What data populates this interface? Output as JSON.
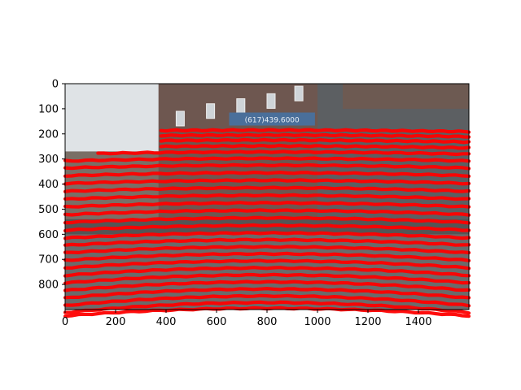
{
  "chart_data": {
    "type": "scatter",
    "title": "",
    "xlabel": "",
    "ylabel": "",
    "xlim": [
      0,
      1600
    ],
    "ylim": [
      900,
      0
    ],
    "y_axis_inverted": true,
    "grid": false,
    "legend": "none",
    "x_ticks": [
      0,
      200,
      400,
      600,
      800,
      1000,
      1200,
      1400
    ],
    "y_ticks": [
      0,
      100,
      200,
      300,
      400,
      500,
      600,
      700,
      800
    ],
    "background": "street-scene photograph of a brick building with projected lidar points",
    "sign_text": "(617)439.6000",
    "point_color": "#ff0000",
    "series": [
      {
        "scanlines": [
          {
            "y0": 185,
            "curve": 6,
            "x": [
              380,
              1600
            ]
          },
          {
            "y0": 205,
            "curve": 6,
            "x": [
              380,
              1600
            ]
          },
          {
            "y0": 225,
            "curve": 7,
            "x": [
              380,
              1600
            ]
          },
          {
            "y0": 248,
            "curve": 8,
            "x": [
              380,
              1600
            ]
          },
          {
            "y0": 272,
            "curve": 9,
            "x": [
              130,
              1600
            ]
          },
          {
            "y0": 298,
            "curve": 10,
            "x": [
              0,
              1600
            ]
          },
          {
            "y0": 325,
            "curve": 11,
            "x": [
              0,
              1600
            ]
          },
          {
            "y0": 355,
            "curve": 12,
            "x": [
              0,
              1600
            ]
          },
          {
            "y0": 385,
            "curve": 13,
            "x": [
              0,
              1600
            ]
          },
          {
            "y0": 415,
            "curve": 14,
            "x": [
              0,
              1600
            ]
          },
          {
            "y0": 445,
            "curve": 15,
            "x": [
              0,
              1600
            ]
          },
          {
            "y0": 475,
            "curve": 16,
            "x": [
              0,
              1600
            ]
          },
          {
            "y0": 505,
            "curve": 17,
            "x": [
              0,
              1600
            ]
          },
          {
            "y0": 535,
            "curve": 18,
            "x": [
              0,
              1600
            ]
          },
          {
            "y0": 565,
            "curve": 19,
            "x": [
              0,
              1600
            ]
          },
          {
            "y0": 595,
            "curve": 20,
            "x": [
              0,
              1600
            ]
          },
          {
            "y0": 622,
            "curve": 22,
            "x": [
              0,
              1600
            ]
          },
          {
            "y0": 650,
            "curve": 24,
            "x": [
              0,
              1600
            ]
          },
          {
            "y0": 678,
            "curve": 26,
            "x": [
              0,
              1600
            ]
          },
          {
            "y0": 706,
            "curve": 28,
            "x": [
              0,
              1600
            ]
          },
          {
            "y0": 734,
            "curve": 30,
            "x": [
              0,
              1600
            ]
          },
          {
            "y0": 762,
            "curve": 32,
            "x": [
              0,
              1600
            ]
          },
          {
            "y0": 790,
            "curve": 34,
            "x": [
              0,
              1600
            ]
          },
          {
            "y0": 818,
            "curve": 36,
            "x": [
              0,
              1600
            ]
          },
          {
            "y0": 846,
            "curve": 38,
            "x": [
              0,
              1600
            ]
          },
          {
            "y0": 872,
            "curve": 40,
            "x": [
              0,
              1600
            ]
          },
          {
            "y0": 895,
            "curve": 30,
            "x": [
              0,
              1600
            ]
          }
        ]
      }
    ]
  }
}
